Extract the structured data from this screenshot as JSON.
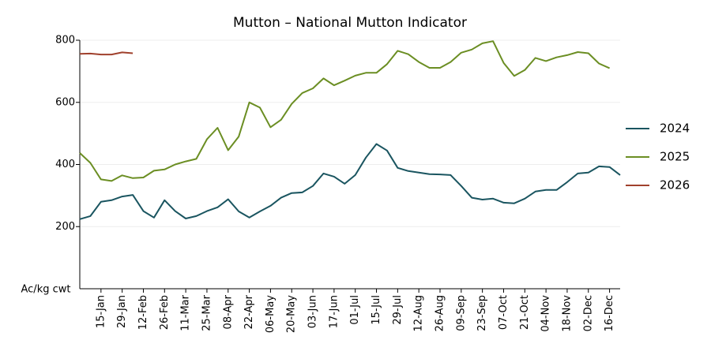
{
  "chart_data": {
    "type": "line",
    "title": "Mutton – National Mutton Indicator",
    "y_label": "Ac/kg cwt",
    "categories": [
      null,
      null,
      "15-Jan",
      null,
      "29-Jan",
      null,
      "12-Feb",
      null,
      "26-Feb",
      null,
      "11-Mar",
      null,
      "25-Mar",
      null,
      "08-Apr",
      null,
      "22-Apr",
      null,
      "06-May",
      null,
      "20-May",
      null,
      "03-Jun",
      null,
      "17-Jun",
      null,
      "01-Jul",
      null,
      "15-Jul",
      null,
      "29-Jul",
      null,
      "12-Aug",
      null,
      "26-Aug",
      null,
      "09-Sep",
      null,
      "23-Sep",
      null,
      "07-Oct",
      null,
      "21-Oct",
      null,
      "04-Nov",
      null,
      "18-Nov",
      null,
      "02-Dec",
      null,
      "16-Dec",
      null
    ],
    "series": [
      {
        "name": "2024",
        "color": "#1a5560",
        "values": [
          224,
          234,
          280,
          285,
          297,
          302,
          250,
          229,
          285,
          250,
          226,
          234,
          250,
          262,
          288,
          249,
          229,
          249,
          267,
          293,
          308,
          310,
          331,
          371,
          361,
          338,
          366,
          422,
          466,
          445,
          389,
          379,
          374,
          369,
          368,
          366,
          331,
          293,
          287,
          290,
          277,
          275,
          290,
          313,
          318,
          318,
          343,
          371,
          374,
          394,
          392,
          366
        ]
      },
      {
        "name": "2025",
        "color": "#6b8e23",
        "values": [
          437,
          405,
          352,
          347,
          365,
          356,
          358,
          380,
          384,
          400,
          410,
          418,
          481,
          518,
          446,
          490,
          600,
          583,
          520,
          544,
          595,
          630,
          645,
          677,
          655,
          670,
          686,
          695,
          695,
          723,
          766,
          755,
          730,
          711,
          711,
          730,
          760,
          770,
          790,
          797,
          727,
          685,
          704,
          743,
          733,
          745,
          752,
          762,
          758,
          725,
          710,
          null
        ]
      },
      {
        "name": "2026",
        "color": "#a0412d",
        "values": [
          756,
          757,
          754,
          754,
          761,
          758,
          null,
          null,
          null,
          null,
          null,
          null,
          null,
          null,
          null,
          null,
          null,
          null,
          null,
          null,
          null,
          null,
          null,
          null,
          null,
          null,
          null,
          null,
          null,
          null,
          null,
          null,
          null,
          null,
          null,
          null,
          null,
          null,
          null,
          null,
          null,
          null,
          null,
          null,
          null,
          null,
          null,
          null,
          null,
          null,
          null,
          null
        ]
      }
    ],
    "ylim": [
      0,
      800
    ],
    "yticks": [
      200,
      400,
      600,
      800
    ],
    "grid": true,
    "legend": "right"
  }
}
